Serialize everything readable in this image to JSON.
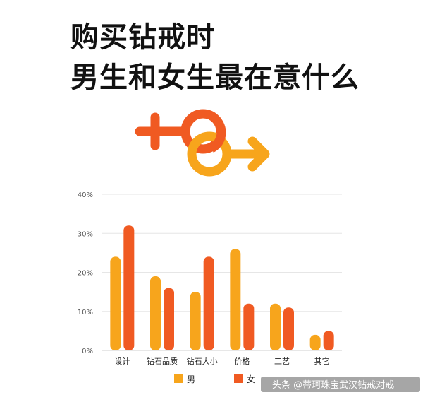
{
  "title": {
    "line1": "购买钻戒时",
    "line2": "男生和女生最在意什么"
  },
  "chart_data": {
    "type": "bar",
    "categories": [
      "设计",
      "钻石品质",
      "钻石大小",
      "价格",
      "工艺",
      "其它"
    ],
    "series": [
      {
        "name": "男",
        "values": [
          24,
          19,
          15,
          26,
          12,
          4
        ],
        "color": "#f7a51c"
      },
      {
        "name": "女",
        "values": [
          32,
          16,
          24,
          12,
          11,
          5
        ],
        "color": "#f05a22"
      }
    ],
    "ylim": [
      0,
      40
    ],
    "yticks": [
      0,
      10,
      20,
      30,
      40
    ],
    "ytick_labels": [
      "0%",
      "10%",
      "20%",
      "30%",
      "40%"
    ],
    "grid": true,
    "legend": "bottom"
  },
  "symbols": {
    "female_color": "#f05a22",
    "male_color": "#f7a51c",
    "female_icon": "female-symbol-icon",
    "male_icon": "male-symbol-icon"
  },
  "watermark": "头条 @蒂珂珠宝武汉钻戒对戒"
}
